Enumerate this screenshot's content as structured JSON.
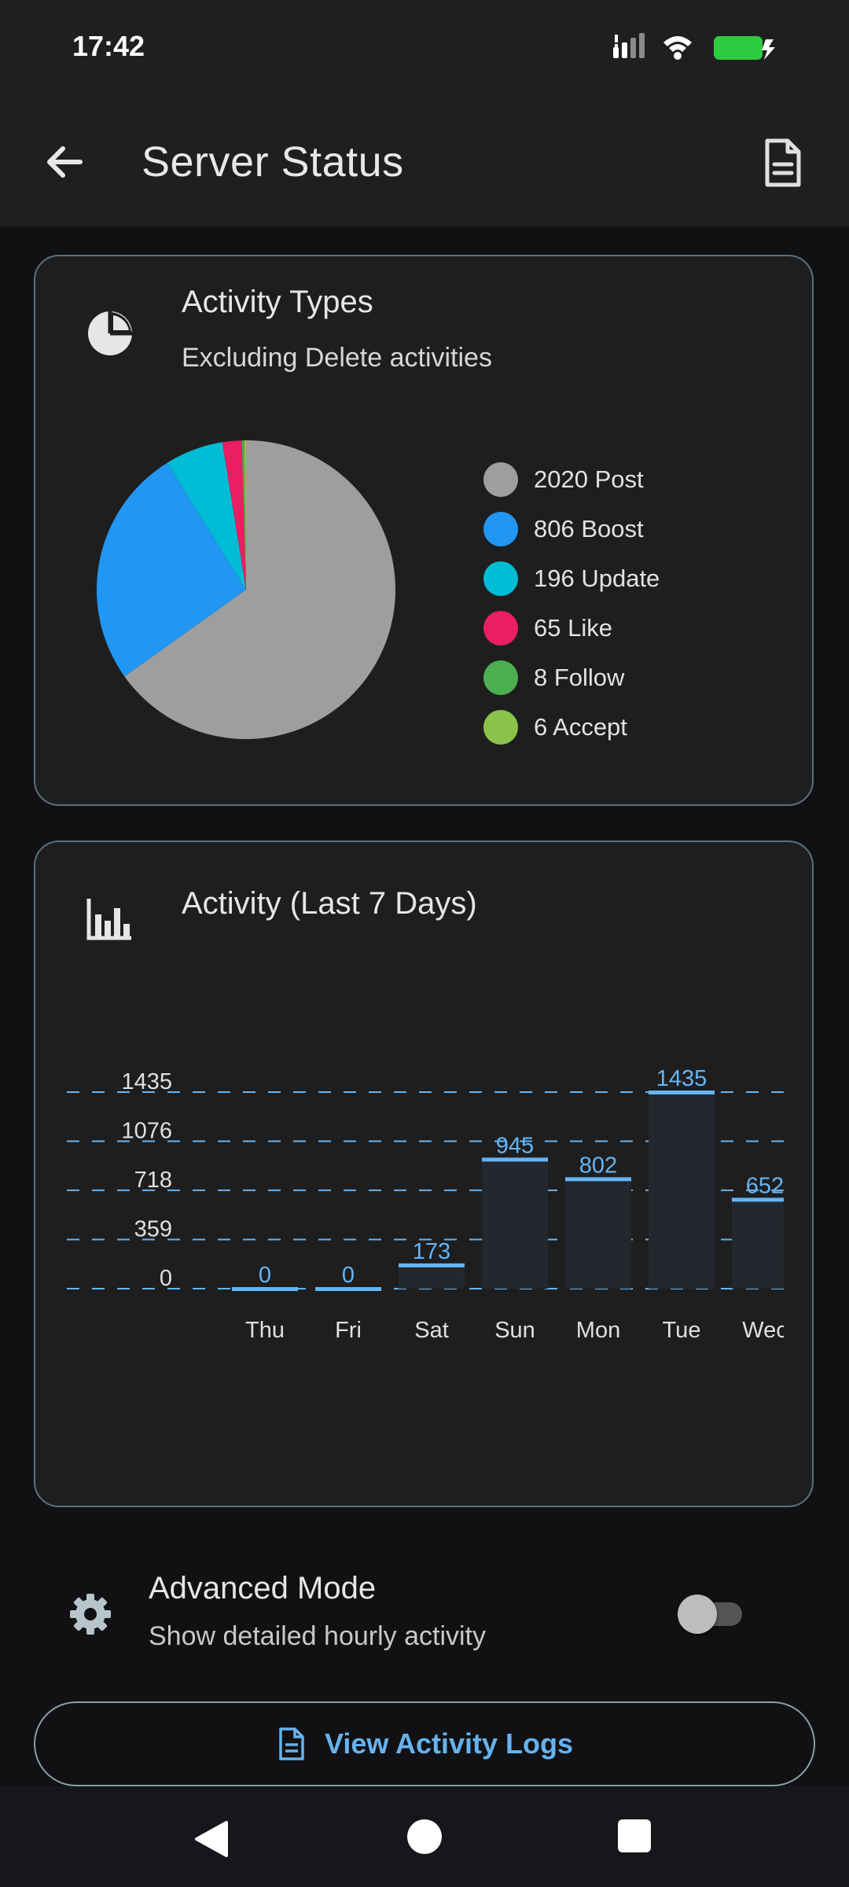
{
  "status_bar": {
    "time": "17:42"
  },
  "app_bar": {
    "title": "Server Status"
  },
  "activity_types": {
    "title": "Activity Types",
    "subtitle": "Excluding Delete activities",
    "legend": [
      {
        "label": "2020 Post",
        "color": "#9e9e9e"
      },
      {
        "label": "806 Boost",
        "color": "#2196f3"
      },
      {
        "label": "196 Update",
        "color": "#00bcd4"
      },
      {
        "label": "65 Like",
        "color": "#e91e63"
      },
      {
        "label": "8 Follow",
        "color": "#4caf50"
      },
      {
        "label": "6 Accept",
        "color": "#8bc34a"
      }
    ]
  },
  "activity_week": {
    "title": "Activity (Last 7 Days)"
  },
  "chart_data": [
    {
      "type": "pie",
      "title": "Activity Types",
      "subtitle": "Excluding Delete activities",
      "categories": [
        "Post",
        "Boost",
        "Update",
        "Like",
        "Follow",
        "Accept"
      ],
      "values": [
        2020,
        806,
        196,
        65,
        8,
        6
      ],
      "colors": [
        "#9e9e9e",
        "#2196f3",
        "#00bcd4",
        "#e91e63",
        "#4caf50",
        "#8bc34a"
      ],
      "legend": "right"
    },
    {
      "type": "bar",
      "title": "Activity (Last 7 Days)",
      "categories": [
        "Thu",
        "Fri",
        "Sat",
        "Sun",
        "Mon",
        "Tue",
        "Wed"
      ],
      "category_labels_shown": [
        "Thu",
        "Fri",
        "Sat",
        "Sun",
        "Mon",
        "Tue",
        "Wec"
      ],
      "values": [
        0,
        0,
        173,
        945,
        802,
        1435,
        652
      ],
      "value_labels_shown": [
        "0",
        "0",
        "173",
        "945",
        "802",
        "1435",
        "652"
      ],
      "yticks": [
        0,
        359,
        718,
        1076,
        1435
      ],
      "ylim": [
        0,
        1435
      ],
      "grid": true,
      "bar_color": "#23282e",
      "accent_color": "#64b5f6"
    }
  ],
  "advanced": {
    "title": "Advanced Mode",
    "subtitle": "Show detailed hourly activity",
    "enabled": false
  },
  "logs_button": {
    "label": "View Activity Logs"
  }
}
